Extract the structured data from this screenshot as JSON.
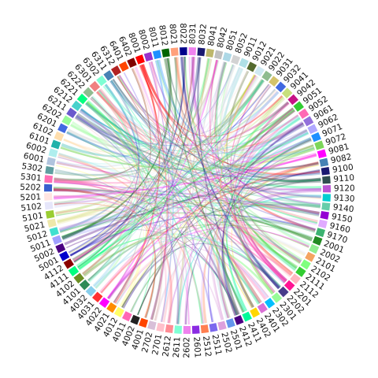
{
  "chart_data": {
    "type": "chord",
    "title": "",
    "sectors": [
      {
        "label": "9011",
        "color": "#b0e0e6"
      },
      {
        "label": "9012",
        "color": "#556b2f"
      },
      {
        "label": "9021",
        "color": "#cfe9f2"
      },
      {
        "label": "9022",
        "color": "#8fbc8f"
      },
      {
        "label": "9031",
        "color": "#d4c36a"
      },
      {
        "label": "9032",
        "color": "#4169e1"
      },
      {
        "label": "9041",
        "color": "#c7e07d"
      },
      {
        "label": "9042",
        "color": "#c71585"
      },
      {
        "label": "9051",
        "color": "#32cd32"
      },
      {
        "label": "9052",
        "color": "#ff69b4"
      },
      {
        "label": "9061",
        "color": "#9370db"
      },
      {
        "label": "9062",
        "color": "#b0a8ff"
      },
      {
        "label": "9071",
        "color": "#1e90ff"
      },
      {
        "label": "9072",
        "color": "#7cd65a"
      },
      {
        "label": "9081",
        "color": "#ff00ff"
      },
      {
        "label": "9082",
        "color": "#4682b4"
      },
      {
        "label": "9100",
        "color": "#191970"
      },
      {
        "label": "9110",
        "color": "#2f4f4f"
      },
      {
        "label": "9120",
        "color": "#ba55d3"
      },
      {
        "label": "9130",
        "color": "#00ced1"
      },
      {
        "label": "9140",
        "color": "#66cdaa"
      },
      {
        "label": "9150",
        "color": "#9400d3"
      },
      {
        "label": "9160",
        "color": "#e0aaff"
      },
      {
        "label": "9170",
        "color": "#3cb371"
      },
      {
        "label": "2001",
        "color": "#228b22"
      },
      {
        "label": "2002",
        "color": "#90ee90"
      },
      {
        "label": "2101",
        "color": "#f4a460"
      },
      {
        "label": "2102",
        "color": "#7fff7f"
      },
      {
        "label": "2111",
        "color": "#32cd32"
      },
      {
        "label": "2112",
        "color": "#ffb6c1"
      },
      {
        "label": "2201",
        "color": "#ff1493"
      },
      {
        "label": "2202",
        "color": "#483d8b"
      },
      {
        "label": "2301",
        "color": "#98fb98"
      },
      {
        "label": "2302",
        "color": "#00bfff"
      },
      {
        "label": "2401",
        "color": "#da70d6"
      },
      {
        "label": "2402",
        "color": "#ffd700"
      },
      {
        "label": "2411",
        "color": "#00fa9a"
      },
      {
        "label": "2412",
        "color": "#4b0082"
      },
      {
        "label": "2501",
        "color": "#6495ed"
      },
      {
        "label": "2502",
        "color": "#dda0dd"
      },
      {
        "label": "2511",
        "color": "#7b68ee"
      },
      {
        "label": "2512",
        "color": "#ff7f50"
      },
      {
        "label": "2601",
        "color": "#8a2be2"
      },
      {
        "label": "2602",
        "color": "#ee82ee"
      },
      {
        "label": "2611",
        "color": "#7fffd4"
      },
      {
        "label": "2612",
        "color": "#ff8c94"
      },
      {
        "label": "2701",
        "color": "#ffc0cb"
      },
      {
        "label": "2702",
        "color": "#d8bfd8"
      },
      {
        "label": "4001",
        "color": "#ff4500"
      },
      {
        "label": "4002",
        "color": "#222222"
      },
      {
        "label": "4011",
        "color": "#ff69b4"
      },
      {
        "label": "4012",
        "color": "#ffff66"
      },
      {
        "label": "4021",
        "color": "#ff8c00"
      },
      {
        "label": "4022",
        "color": "#ff00ff"
      },
      {
        "label": "4031",
        "color": "#ff3030"
      },
      {
        "label": "4032",
        "color": "#87ceeb"
      },
      {
        "label": "4101",
        "color": "#2e8b57"
      },
      {
        "label": "4102",
        "color": "#6b8e23"
      },
      {
        "label": "4111",
        "color": "#00ff7f"
      },
      {
        "label": "4112",
        "color": "#8b0000"
      },
      {
        "label": "5001",
        "color": "#0000cd"
      },
      {
        "label": "5002",
        "color": "#4b0082"
      },
      {
        "label": "5011",
        "color": "#a0a0ff"
      },
      {
        "label": "5012",
        "color": "#40e0d0"
      },
      {
        "label": "5021",
        "color": "#eee8aa"
      },
      {
        "label": "5101",
        "color": "#9acd32"
      },
      {
        "label": "5102",
        "color": "#e6e6fa"
      },
      {
        "label": "5201",
        "color": "#ffe4e1"
      },
      {
        "label": "5202",
        "color": "#3a5fcd"
      },
      {
        "label": "5301",
        "color": "#ff6eb4"
      },
      {
        "label": "5302",
        "color": "#5f9ea0"
      },
      {
        "label": "6001",
        "color": "#b0c4de"
      },
      {
        "label": "6002",
        "color": "#afeeee"
      },
      {
        "label": "6101",
        "color": "#20b2aa"
      },
      {
        "label": "6102",
        "color": "#ffdead"
      },
      {
        "label": "6201",
        "color": "#4169e1"
      },
      {
        "label": "6202",
        "color": "#98fb98"
      },
      {
        "label": "6211",
        "color": "#6a5acd"
      },
      {
        "label": "6212",
        "color": "#48d1cc"
      },
      {
        "label": "6221",
        "color": "#00ff7f"
      },
      {
        "label": "6222",
        "color": "#8fbc8f"
      },
      {
        "label": "6301",
        "color": "#f08080"
      },
      {
        "label": "6302",
        "color": "#7fffd4"
      },
      {
        "label": "6311",
        "color": "#4682b4"
      },
      {
        "label": "6312",
        "color": "#b22222"
      },
      {
        "label": "6401",
        "color": "#ff4500"
      },
      {
        "label": "6402",
        "color": "#800000"
      },
      {
        "label": "8001",
        "color": "#ff0000"
      },
      {
        "label": "8002",
        "color": "#9932cc"
      },
      {
        "label": "8011",
        "color": "#1e90ff"
      },
      {
        "label": "8012",
        "color": "#006400"
      },
      {
        "label": "8021",
        "color": "#ffa07a"
      },
      {
        "label": "8022",
        "color": "#00008b"
      },
      {
        "label": "8031",
        "color": "#ee82ee"
      },
      {
        "label": "8032",
        "color": "#191970"
      },
      {
        "label": "8041",
        "color": "#bdb76b"
      },
      {
        "label": "8042",
        "color": "#c0c0c0"
      },
      {
        "label": "8051",
        "color": "#add8e6"
      },
      {
        "label": "8052",
        "color": "#d3d3d3"
      }
    ]
  }
}
